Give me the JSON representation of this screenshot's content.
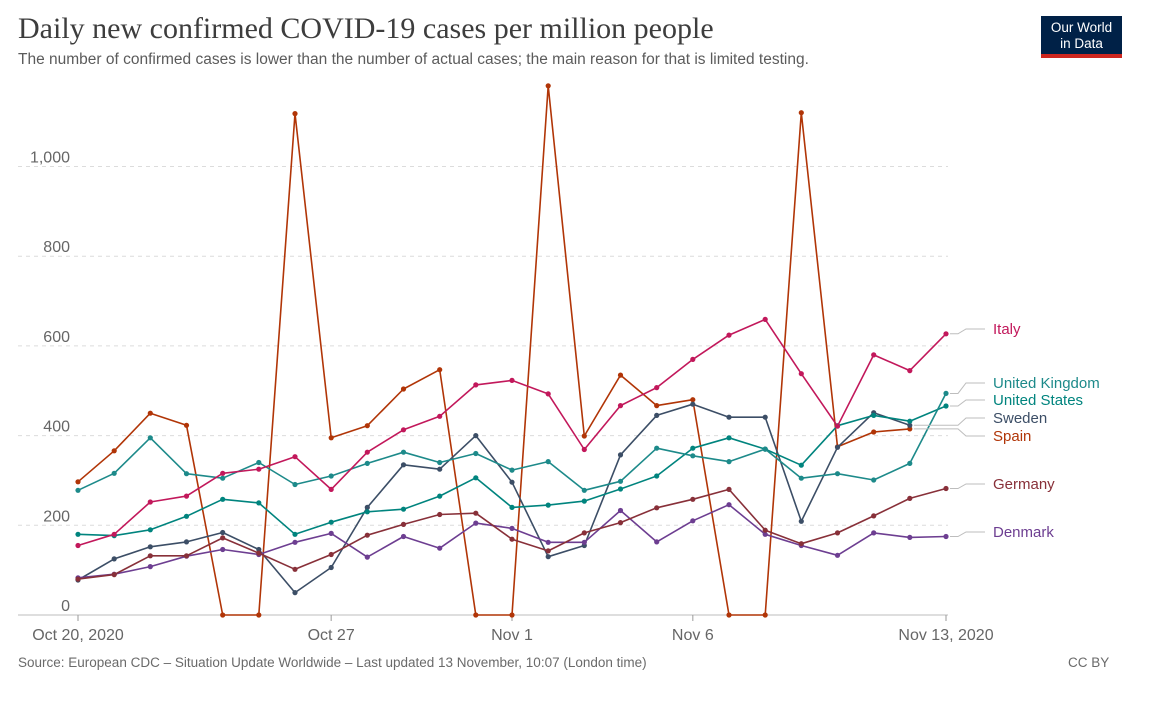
{
  "header": {
    "title": "Daily new confirmed COVID-19 cases per million people",
    "subtitle": "The number of confirmed cases is lower than the number of actual cases; the main reason for that is limited testing."
  },
  "logo": {
    "line1": "Our World",
    "line2": "in Data"
  },
  "footer": {
    "source": "Source: European CDC – Situation Update Worldwide – Last updated 13 November, 10:07 (London time)",
    "license": "CC BY"
  },
  "chart_data": {
    "type": "line",
    "title": "Daily new confirmed COVID-19 cases per million people",
    "xlabel": "",
    "ylabel": "",
    "ylim": [
      0,
      1150
    ],
    "yticks": [
      0,
      200,
      400,
      600,
      800,
      1000
    ],
    "ytick_labels": [
      "0",
      "200",
      "400",
      "600",
      "800",
      "1,000"
    ],
    "grid": true,
    "x_tick_indices": [
      0,
      7,
      12,
      17,
      24
    ],
    "x_tick_labels": [
      "Oct 20, 2020",
      "Oct 27",
      "Nov 1",
      "Nov 6",
      "Nov 13, 2020"
    ],
    "x": [
      "Oct 20",
      "Oct 21",
      "Oct 22",
      "Oct 23",
      "Oct 24",
      "Oct 25",
      "Oct 26",
      "Oct 27",
      "Oct 28",
      "Oct 29",
      "Oct 30",
      "Oct 31",
      "Nov 1",
      "Nov 2",
      "Nov 3",
      "Nov 4",
      "Nov 5",
      "Nov 6",
      "Nov 7",
      "Nov 8",
      "Nov 9",
      "Nov 10",
      "Nov 11",
      "Nov 12",
      "Nov 13"
    ],
    "series": [
      {
        "name": "Spain",
        "color": "#b13507",
        "values": [
          297,
          366,
          450,
          423,
          0,
          0,
          1118,
          395,
          422,
          504,
          547,
          0,
          0,
          1180,
          399,
          535,
          467,
          480,
          0,
          0,
          1120,
          375,
          408,
          415,
          null
        ]
      },
      {
        "name": "Sweden",
        "color": "#3c4e66",
        "values": [
          78,
          125,
          152,
          163,
          184,
          146,
          50,
          106,
          240,
          335,
          325,
          400,
          296,
          130,
          155,
          357,
          445,
          470,
          441,
          441,
          209,
          374,
          451,
          423,
          null
        ]
      },
      {
        "name": "Denmark",
        "color": "#6d3e91",
        "values": [
          83,
          91,
          108,
          131,
          146,
          135,
          162,
          182,
          129,
          175,
          149,
          205,
          193,
          162,
          162,
          233,
          163,
          210,
          246,
          180,
          155,
          133,
          183,
          173,
          175
        ]
      },
      {
        "name": "Germany",
        "color": "#883039",
        "values": [
          80,
          90,
          132,
          132,
          172,
          138,
          102,
          135,
          178,
          202,
          224,
          227,
          169,
          143,
          183,
          206,
          239,
          258,
          280,
          189,
          159,
          183,
          221,
          260,
          282
        ]
      },
      {
        "name": "United States",
        "color": "#00847e",
        "values": [
          180,
          177,
          190,
          220,
          258,
          250,
          180,
          207,
          230,
          236,
          265,
          306,
          240,
          245,
          254,
          281,
          310,
          372,
          395,
          370,
          334,
          422,
          445,
          432,
          466
        ]
      },
      {
        "name": "United Kingdom",
        "color": "#1d8a8a",
        "values": [
          278,
          316,
          395,
          315,
          305,
          340,
          291,
          310,
          338,
          363,
          340,
          360,
          323,
          342,
          278,
          298,
          372,
          355,
          342,
          370,
          305,
          315,
          301,
          338,
          494
        ]
      },
      {
        "name": "Italy",
        "color": "#c2185b",
        "values": [
          155,
          180,
          252,
          265,
          316,
          325,
          353,
          280,
          363,
          413,
          443,
          513,
          523,
          493,
          369,
          467,
          507,
          570,
          624,
          659,
          538,
          421,
          580,
          545,
          627
        ]
      }
    ],
    "legend": [
      {
        "name": "Italy",
        "color": "#c2185b"
      },
      {
        "name": "United Kingdom",
        "color": "#1d8a8a"
      },
      {
        "name": "United States",
        "color": "#00847e"
      },
      {
        "name": "Sweden",
        "color": "#3c4e66"
      },
      {
        "name": "Spain",
        "color": "#b13507"
      },
      {
        "name": "Germany",
        "color": "#883039"
      },
      {
        "name": "Denmark",
        "color": "#6d3e91"
      }
    ]
  }
}
